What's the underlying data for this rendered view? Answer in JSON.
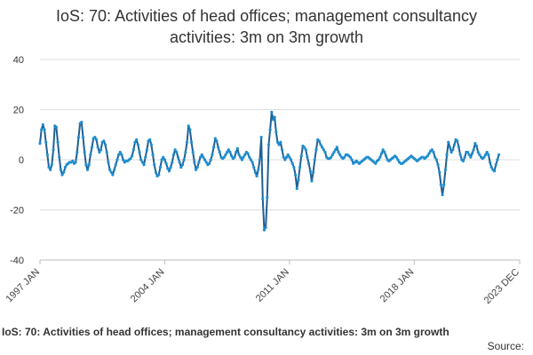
{
  "chart_data": {
    "type": "line",
    "title_line1": "IoS: 70: Activities of head offices; management consultancy",
    "title_line2": "activities: 3m on 3m growth",
    "caption": "IoS: 70: Activities of head offices; management consultancy activities: 3m on 3m growth",
    "source_label": "Source:",
    "xlabel": "",
    "ylabel": "",
    "x_start": "1997-01",
    "x_end": "2023-12",
    "x_ticks": [
      "1997 JAN",
      "2004 JAN",
      "2011 JAN",
      "2018 JAN",
      "2023 DEC"
    ],
    "y_ticks": [
      "40",
      "20",
      "0",
      "-20",
      "-40"
    ],
    "ylim": [
      -40,
      40
    ],
    "grid": true,
    "colors": {
      "series": "#206095",
      "marker": "#1f8fd1",
      "grid": "#dddddd"
    },
    "series": [
      {
        "frequency": "monthly",
        "values": [
          6.5,
          12,
          14,
          12,
          7,
          2,
          -3,
          -4,
          -2,
          4,
          13.5,
          13,
          7,
          1,
          -4,
          -6,
          -5,
          -3,
          -2,
          -1.5,
          -1,
          -1,
          -0.5,
          -1.5,
          -1,
          3,
          9,
          14.5,
          15,
          9,
          3,
          -2,
          -4,
          -2,
          2,
          5,
          8.5,
          9,
          8,
          5,
          3,
          4,
          7,
          7.5,
          6,
          3,
          -1,
          -4,
          -5,
          -6,
          -4,
          -2,
          0,
          2,
          3,
          2,
          0,
          -1,
          -0.5,
          -0.5,
          0,
          0.5,
          1.5,
          4,
          7,
          8,
          6,
          3,
          0,
          -1,
          -2,
          1,
          4,
          7.5,
          8,
          6,
          2,
          -2,
          -5,
          -6.5,
          -6,
          -3,
          0,
          1,
          0,
          -1.5,
          -3.5,
          -4.5,
          -3,
          -1,
          2,
          4,
          3,
          1,
          -1,
          -3,
          -2,
          0,
          3,
          7,
          13.5,
          12,
          7,
          3,
          -1,
          -4,
          -3,
          -1,
          1,
          2,
          1,
          0,
          -1,
          -2,
          -1.5,
          0,
          2,
          5,
          8.5,
          7.5,
          5,
          3,
          1,
          0.5,
          1,
          2,
          3,
          4,
          3,
          1.5,
          0.5,
          1,
          3,
          4.5,
          2,
          1,
          0,
          1,
          2,
          3,
          2.5,
          1,
          0,
          -1,
          -3,
          -5,
          -6.5,
          -4,
          0,
          9,
          -15.5,
          -28,
          -27,
          -15,
          6,
          12,
          19,
          16,
          17,
          11,
          7,
          6,
          7,
          4,
          1,
          0,
          1,
          2,
          1,
          0,
          -1.5,
          -3,
          -6,
          -11.5,
          -8,
          -3,
          1.5,
          5.5,
          5,
          4,
          1,
          -1.5,
          -4.5,
          -8.5,
          -5,
          0,
          4,
          8,
          7.5,
          6,
          5,
          4,
          3,
          1,
          0.5,
          0.5,
          1,
          2,
          3,
          4,
          5,
          3,
          2,
          1,
          0.5,
          1,
          2,
          2,
          1.5,
          1,
          0,
          -1.5,
          -1,
          -0.5,
          -1,
          -1.5,
          -1,
          -0.5,
          0,
          0.5,
          1,
          1,
          0.5,
          0,
          -0.5,
          -1,
          -1.5,
          -0.5,
          0,
          1,
          2.5,
          4,
          3,
          1.5,
          0,
          -0.5,
          0,
          0.5,
          1,
          1.5,
          1,
          0,
          -1,
          -1.5,
          -1.5,
          -1,
          -0.5,
          0,
          0.5,
          1,
          1.5,
          1,
          0.5,
          0,
          -0.5,
          0,
          0.5,
          1,
          1,
          0.5,
          1,
          1.5,
          2.5,
          3.5,
          4,
          3,
          1,
          0,
          -2,
          -5,
          -10,
          -14,
          -10,
          -4,
          2,
          7,
          5,
          3,
          4,
          6,
          8,
          7.5,
          5,
          2,
          0,
          -0.5,
          1,
          3,
          3,
          2,
          1,
          2.5,
          4,
          6.5,
          5.5,
          3,
          2,
          1,
          0.5,
          1,
          2,
          3,
          2,
          -1,
          -3,
          -4,
          -4.5,
          -2,
          0,
          2
        ]
      }
    ]
  }
}
